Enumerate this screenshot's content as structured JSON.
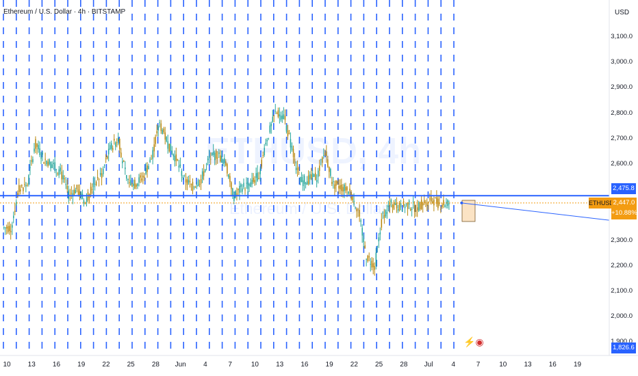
{
  "header": {
    "title": "Ethereum / U.S. Dollar · 4h · BITSTAMP"
  },
  "watermark": {
    "symbol": "ETHUSD, 4h",
    "name": "Ethereum / U.S. Dollar"
  },
  "price_axis": {
    "currency": "USD"
  },
  "tags": {
    "level_value": "2,475.8",
    "symbol": "ETHUSD",
    "last_price": "2,447.0",
    "change": "+10.88%",
    "low_value": "1,826.6"
  },
  "colors": {
    "accent": "#2962ff",
    "up": "#26a69a",
    "down": "#b8860b",
    "tag": "#f39c12"
  },
  "chart_data": {
    "type": "candlestick",
    "title": "Ethereum / U.S. Dollar · 4h · BITSTAMP",
    "y_ticks": [
      "3,100.0",
      "3,000.0",
      "2,900.0",
      "2,800.0",
      "2,700.0",
      "2,600.0",
      "2,300.0",
      "2,200.0",
      "2,100.0",
      "2,000.0",
      "1,900.0"
    ],
    "x_ticks": [
      "10",
      "13",
      "16",
      "19",
      "22",
      "25",
      "28",
      "Jun",
      "4",
      "7",
      "10",
      "13",
      "16",
      "19",
      "22",
      "25",
      "28",
      "Jul",
      "4",
      "7",
      "10",
      "13",
      "16",
      "19"
    ],
    "ylim": [
      1800,
      3200
    ],
    "horizontal_line": 2475.8,
    "last_price": 2447.0,
    "daily_price_path": [
      {
        "day": "May 10",
        "close": 2350
      },
      {
        "day": "May 11",
        "close": 2500
      },
      {
        "day": "May 12",
        "close": 2520
      },
      {
        "day": "May 13",
        "close": 2680
      },
      {
        "day": "May 14",
        "close": 2620
      },
      {
        "day": "May 15",
        "close": 2600
      },
      {
        "day": "May 16",
        "close": 2570
      },
      {
        "day": "May 17",
        "close": 2480
      },
      {
        "day": "May 18",
        "close": 2500
      },
      {
        "day": "May 19",
        "close": 2450
      },
      {
        "day": "May 20",
        "close": 2520
      },
      {
        "day": "May 21",
        "close": 2560
      },
      {
        "day": "May 22",
        "close": 2660
      },
      {
        "day": "May 23",
        "close": 2700
      },
      {
        "day": "May 24",
        "close": 2540
      },
      {
        "day": "May 25",
        "close": 2520
      },
      {
        "day": "May 26",
        "close": 2550
      },
      {
        "day": "May 27",
        "close": 2620
      },
      {
        "day": "May 28",
        "close": 2760
      },
      {
        "day": "May 29",
        "close": 2680
      },
      {
        "day": "May 30",
        "close": 2620
      },
      {
        "day": "May 31",
        "close": 2540
      },
      {
        "day": "Jun 1",
        "close": 2510
      },
      {
        "day": "Jun 2",
        "close": 2540
      },
      {
        "day": "Jun 3",
        "close": 2620
      },
      {
        "day": "Jun 4",
        "close": 2640
      },
      {
        "day": "Jun 5",
        "close": 2600
      },
      {
        "day": "Jun 6",
        "close": 2470
      },
      {
        "day": "Jun 7",
        "close": 2510
      },
      {
        "day": "Jun 8",
        "close": 2520
      },
      {
        "day": "Jun 9",
        "close": 2560
      },
      {
        "day": "Jun 10",
        "close": 2700
      },
      {
        "day": "Jun 11",
        "close": 2800
      },
      {
        "day": "Jun 12",
        "close": 2790
      },
      {
        "day": "Jun 13",
        "close": 2660
      },
      {
        "day": "Jun 14",
        "close": 2530
      },
      {
        "day": "Jun 15",
        "close": 2540
      },
      {
        "day": "Jun 16",
        "close": 2550
      },
      {
        "day": "Jun 17",
        "close": 2650
      },
      {
        "day": "Jun 18",
        "close": 2520
      },
      {
        "day": "Jun 19",
        "close": 2510
      },
      {
        "day": "Jun 20",
        "close": 2490
      },
      {
        "day": "Jun 21",
        "close": 2420
      },
      {
        "day": "Jun 22",
        "close": 2240
      },
      {
        "day": "Jun 23",
        "close": 2200
      },
      {
        "day": "Jun 24",
        "close": 2400
      },
      {
        "day": "Jun 25",
        "close": 2440
      },
      {
        "day": "Jun 26",
        "close": 2430
      },
      {
        "day": "Jun 27",
        "close": 2440
      },
      {
        "day": "Jun 28",
        "close": 2430
      },
      {
        "day": "Jun 29",
        "close": 2450
      },
      {
        "day": "Jun 30",
        "close": 2460
      },
      {
        "day": "Jul 1",
        "close": 2440
      },
      {
        "day": "Jul 2",
        "close": 2447
      }
    ],
    "projection": {
      "from": {
        "day": "Jul 4",
        "price": 2447
      },
      "to": {
        "day": "Jul 19",
        "price": 2390
      }
    }
  }
}
